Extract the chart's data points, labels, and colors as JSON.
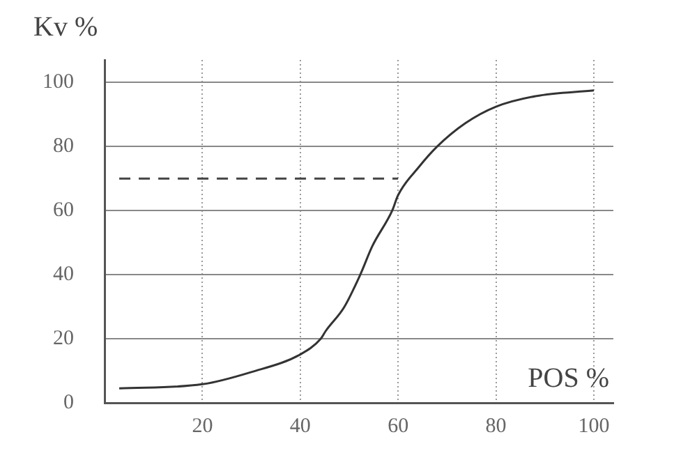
{
  "chart_data": {
    "type": "line",
    "xlabel": "POS %",
    "ylabel": "Kv %",
    "xlim": [
      0,
      104
    ],
    "xticks": [
      20,
      40,
      60,
      80,
      100
    ],
    "ylim": [
      0,
      107
    ],
    "yticks": [
      0,
      20,
      40,
      60,
      80,
      100
    ],
    "grid": true,
    "legend": false,
    "marker": "none",
    "series": [
      {
        "color": "#333333",
        "line_style": "solid",
        "x": [
          3,
          20,
          30,
          40,
          44.2,
          45.2,
          49,
          52.3,
          54.7,
          58.8,
          60,
          64.2,
          68,
          73.8,
          80,
          88.1,
          100
        ],
        "values": [
          4.5,
          5.8,
          9.6,
          15.1,
          20,
          22.4,
          29.9,
          40.1,
          48.8,
          60,
          64.8,
          73.5,
          80,
          87.3,
          92.4,
          95.7,
          97.5
        ]
      },
      {
        "color": "#444444",
        "line_style": "dashed",
        "x": [
          3,
          60
        ],
        "values": [
          70,
          70
        ]
      }
    ]
  }
}
